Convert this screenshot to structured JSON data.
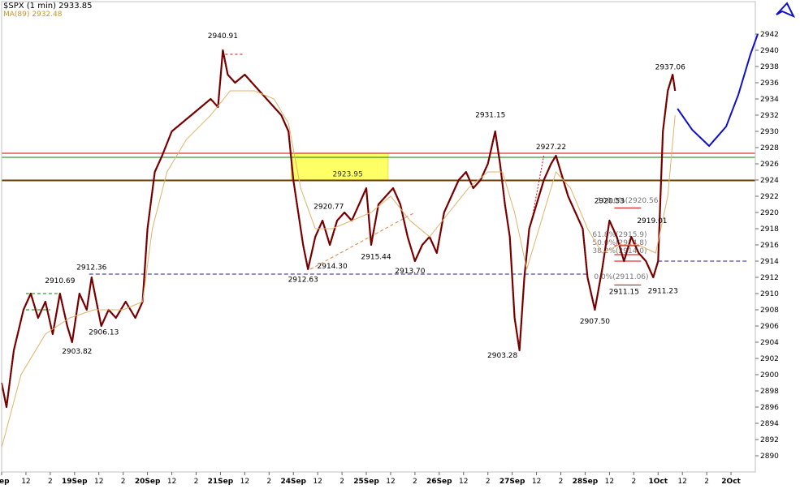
{
  "chart_data": {
    "type": "line",
    "title": "$SPX (1 min) 2933.85",
    "ma_label": "MA(89) 2932.48",
    "colors": {
      "price": "#8b0000",
      "price_alt": "#000000",
      "ma": "#e2b36a",
      "red_line": "#d00000",
      "green_line": "#008000",
      "dashed_blue": "#2020a0",
      "projection": "#1010cc",
      "zone": "#ffff66"
    },
    "ylim": [
      2888,
      2944
    ],
    "yticks": [
      2890,
      2892,
      2894,
      2896,
      2898,
      2900,
      2902,
      2904,
      2906,
      2908,
      2910,
      2912,
      2914,
      2916,
      2918,
      2920,
      2922,
      2924,
      2926,
      2928,
      2930,
      2932,
      2934,
      2936,
      2938,
      2940,
      2942
    ],
    "xlim": [
      0,
      31
    ],
    "xticks": [
      {
        "x": 0.0,
        "label": "Sep"
      },
      {
        "x": 1.0,
        "label": "12"
      },
      {
        "x": 2.0,
        "label": "2"
      },
      {
        "x": 3.0,
        "label": "19Sep"
      },
      {
        "x": 4.0,
        "label": "12"
      },
      {
        "x": 5.0,
        "label": "2"
      },
      {
        "x": 6.0,
        "label": "20Sep"
      },
      {
        "x": 7.0,
        "label": "12"
      },
      {
        "x": 8.0,
        "label": "2"
      },
      {
        "x": 9.0,
        "label": "21Sep"
      },
      {
        "x": 10.0,
        "label": "12"
      },
      {
        "x": 11.0,
        "label": "2"
      },
      {
        "x": 12.0,
        "label": "24Sep"
      },
      {
        "x": 13.0,
        "label": "12"
      },
      {
        "x": 14.0,
        "label": "2"
      },
      {
        "x": 15.0,
        "label": "25Sep"
      },
      {
        "x": 16.0,
        "label": "12"
      },
      {
        "x": 17.0,
        "label": "2"
      },
      {
        "x": 18.0,
        "label": "26Sep"
      },
      {
        "x": 19.0,
        "label": "12"
      },
      {
        "x": 20.0,
        "label": "2"
      },
      {
        "x": 21.0,
        "label": "27Sep"
      },
      {
        "x": 22.0,
        "label": "12"
      },
      {
        "x": 23.0,
        "label": "2"
      },
      {
        "x": 24.0,
        "label": "28Sep"
      },
      {
        "x": 25.0,
        "label": "12"
      },
      {
        "x": 26.0,
        "label": "2"
      },
      {
        "x": 27.0,
        "label": "1Oct"
      },
      {
        "x": 28.0,
        "label": "12"
      },
      {
        "x": 29.0,
        "label": "2"
      },
      {
        "x": 30.0,
        "label": "2Oct"
      }
    ],
    "series": [
      {
        "points": [
          [
            0.0,
            2899
          ],
          [
            0.2,
            2896
          ],
          [
            0.5,
            2903
          ],
          [
            0.9,
            2908
          ],
          [
            1.2,
            2910
          ],
          [
            1.5,
            2907
          ],
          [
            1.8,
            2909
          ],
          [
            2.1,
            2905
          ],
          [
            2.4,
            2910
          ],
          [
            2.7,
            2906
          ],
          [
            2.9,
            2904
          ],
          [
            3.2,
            2910
          ],
          [
            3.5,
            2908
          ],
          [
            3.7,
            2912
          ],
          [
            3.9,
            2909
          ],
          [
            4.1,
            2906
          ],
          [
            4.4,
            2908
          ],
          [
            4.7,
            2907
          ],
          [
            5.1,
            2909
          ],
          [
            5.5,
            2907
          ],
          [
            5.8,
            2909
          ],
          [
            6.0,
            2918
          ],
          [
            6.3,
            2925
          ],
          [
            6.6,
            2927
          ],
          [
            7.0,
            2930
          ],
          [
            7.4,
            2931
          ],
          [
            7.8,
            2932
          ],
          [
            8.2,
            2933
          ],
          [
            8.6,
            2934
          ],
          [
            8.9,
            2933
          ],
          [
            9.1,
            2940
          ],
          [
            9.3,
            2937
          ],
          [
            9.6,
            2936
          ],
          [
            10.0,
            2937
          ],
          [
            10.3,
            2936
          ],
          [
            10.6,
            2935
          ],
          [
            10.9,
            2934
          ],
          [
            11.2,
            2933
          ],
          [
            11.5,
            2932
          ],
          [
            11.8,
            2930
          ],
          [
            12.0,
            2924
          ],
          [
            12.2,
            2920
          ],
          [
            12.4,
            2916
          ],
          [
            12.6,
            2913
          ],
          [
            12.9,
            2917
          ],
          [
            13.2,
            2919
          ],
          [
            13.5,
            2916
          ],
          [
            13.8,
            2919
          ],
          [
            14.1,
            2920
          ],
          [
            14.4,
            2919
          ],
          [
            14.7,
            2921
          ],
          [
            15.0,
            2923
          ],
          [
            15.2,
            2916
          ],
          [
            15.5,
            2921
          ],
          [
            15.8,
            2922
          ],
          [
            16.1,
            2923
          ],
          [
            16.4,
            2921
          ],
          [
            16.7,
            2917
          ],
          [
            17.0,
            2914
          ],
          [
            17.3,
            2916
          ],
          [
            17.6,
            2917
          ],
          [
            17.9,
            2915
          ],
          [
            18.2,
            2920
          ],
          [
            18.5,
            2922
          ],
          [
            18.8,
            2924
          ],
          [
            19.1,
            2925
          ],
          [
            19.4,
            2923
          ],
          [
            19.7,
            2924
          ],
          [
            20.0,
            2926
          ],
          [
            20.3,
            2930
          ],
          [
            20.5,
            2926
          ],
          [
            20.7,
            2921
          ],
          [
            20.9,
            2917
          ],
          [
            21.1,
            2907
          ],
          [
            21.3,
            2903
          ],
          [
            21.5,
            2912
          ],
          [
            21.7,
            2918
          ],
          [
            22.0,
            2921
          ],
          [
            22.3,
            2924
          ],
          [
            22.6,
            2926
          ],
          [
            22.8,
            2927
          ],
          [
            23.0,
            2925
          ],
          [
            23.3,
            2922
          ],
          [
            23.6,
            2920
          ],
          [
            23.9,
            2918
          ],
          [
            24.1,
            2912
          ],
          [
            24.4,
            2908
          ],
          [
            24.7,
            2913
          ],
          [
            25.0,
            2919
          ],
          [
            25.3,
            2917
          ],
          [
            25.6,
            2914
          ],
          [
            25.9,
            2917
          ],
          [
            26.2,
            2915
          ],
          [
            26.5,
            2914
          ],
          [
            26.8,
            2912
          ],
          [
            27.0,
            2914
          ],
          [
            27.2,
            2930
          ],
          [
            27.4,
            2935
          ],
          [
            27.6,
            2937
          ],
          [
            27.7,
            2935
          ]
        ]
      },
      {
        "points": [
          [
            0.0,
            2891
          ],
          [
            0.8,
            2900
          ],
          [
            1.8,
            2905
          ],
          [
            2.8,
            2907
          ],
          [
            3.8,
            2908
          ],
          [
            5.0,
            2908
          ],
          [
            5.8,
            2909
          ],
          [
            6.2,
            2918
          ],
          [
            6.8,
            2925
          ],
          [
            7.6,
            2929
          ],
          [
            8.6,
            2932
          ],
          [
            9.4,
            2935
          ],
          [
            10.4,
            2935
          ],
          [
            11.2,
            2934
          ],
          [
            11.8,
            2931
          ],
          [
            12.3,
            2923
          ],
          [
            12.9,
            2918
          ],
          [
            13.6,
            2918
          ],
          [
            14.4,
            2919
          ],
          [
            15.2,
            2920
          ],
          [
            16.0,
            2922
          ],
          [
            16.8,
            2919
          ],
          [
            17.6,
            2917
          ],
          [
            18.4,
            2920
          ],
          [
            19.2,
            2923
          ],
          [
            20.0,
            2925
          ],
          [
            20.6,
            2925
          ],
          [
            21.1,
            2920
          ],
          [
            21.6,
            2913
          ],
          [
            22.1,
            2918
          ],
          [
            22.8,
            2925
          ],
          [
            23.4,
            2923
          ],
          [
            24.1,
            2918
          ],
          [
            24.7,
            2915
          ],
          [
            25.4,
            2916
          ],
          [
            26.2,
            2916
          ],
          [
            26.9,
            2915
          ],
          [
            27.4,
            2922
          ],
          [
            27.7,
            2932
          ]
        ]
      }
    ],
    "hlines": [
      {
        "y": 2927.3,
        "color": "#d00000",
        "label": ""
      },
      {
        "y": 2926.9,
        "color": "#008000",
        "label": ""
      },
      {
        "y": 2924.0,
        "color": "#d00000",
        "label": ""
      },
      {
        "y": 2924.0,
        "color": "#008000",
        "label": ""
      }
    ],
    "zone": {
      "x0": 11.9,
      "x1": 15.9,
      "y0": 2923.95,
      "y1": 2927.3,
      "label": "2923.95"
    },
    "annotations": [
      {
        "x": 9.1,
        "y": 2940.91,
        "label": "2940.91",
        "pos": "above"
      },
      {
        "x": 3.7,
        "y": 2912.36,
        "label": "2912.36",
        "pos": "above"
      },
      {
        "x": 2.4,
        "y": 2910.69,
        "label": "2910.69",
        "pos": "above"
      },
      {
        "x": 4.2,
        "y": 2906.13,
        "label": "2906.13",
        "pos": "below"
      },
      {
        "x": 3.1,
        "y": 2903.82,
        "label": "2903.82",
        "pos": "below"
      },
      {
        "x": 12.7,
        "y": 2920.77,
        "label": "2920.77",
        "pos": "right"
      },
      {
        "x": 12.4,
        "y": 2912.63,
        "label": "2912.63",
        "pos": "below"
      },
      {
        "x": 13.6,
        "y": 2914.3,
        "label": "2914.30",
        "pos": "below"
      },
      {
        "x": 15.4,
        "y": 2915.44,
        "label": "2915.44",
        "pos": "below"
      },
      {
        "x": 16.8,
        "y": 2913.7,
        "label": "2913.70",
        "pos": "below"
      },
      {
        "x": 20.1,
        "y": 2931.15,
        "label": "2931.15",
        "pos": "above"
      },
      {
        "x": 22.6,
        "y": 2927.22,
        "label": "2927.22",
        "pos": "above"
      },
      {
        "x": 20.6,
        "y": 2903.28,
        "label": "2903.28",
        "pos": "below"
      },
      {
        "x": 24.4,
        "y": 2907.5,
        "label": "2907.50",
        "pos": "below"
      },
      {
        "x": 25.0,
        "y": 2920.53,
        "label": "2920.53",
        "pos": "above"
      },
      {
        "x": 26.0,
        "y": 2919.01,
        "label": "2919.01",
        "pos": "right"
      },
      {
        "x": 25.6,
        "y": 2911.15,
        "label": "2911.15",
        "pos": "below"
      },
      {
        "x": 27.2,
        "y": 2911.23,
        "label": "2911.23",
        "pos": "below"
      },
      {
        "x": 27.5,
        "y": 2937.06,
        "label": "2937.06",
        "pos": "above"
      }
    ],
    "fib_labels": [
      "100.0%(2920.56",
      "61.8%(2915.9)",
      "50.0%(2914.8)",
      "38.2%(2914.0)",
      "0.0%(2911.06)"
    ]
  }
}
